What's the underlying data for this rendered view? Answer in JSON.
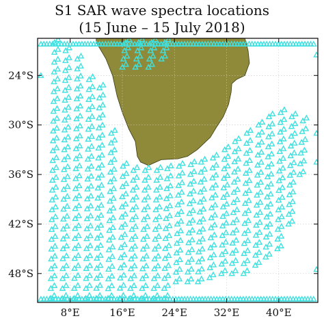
{
  "chart_data": {
    "type": "scatter",
    "title": "S1 SAR wave spectra locations",
    "subtitle": "(15 June – 15 July 2018)",
    "xlim": [
      3,
      46
    ],
    "ylim": [
      -51.5,
      -19.5
    ],
    "x_ticks": [
      {
        "value": 8,
        "label": "8°E"
      },
      {
        "value": 16,
        "label": "16°E"
      },
      {
        "value": 24,
        "label": "24°E"
      },
      {
        "value": 32,
        "label": "32°E"
      },
      {
        "value": 40,
        "label": "40°E"
      }
    ],
    "y_ticks": [
      {
        "value": -24,
        "label": "24°S"
      },
      {
        "value": -30,
        "label": "30°S"
      },
      {
        "value": -36,
        "label": "36°S"
      },
      {
        "value": -42,
        "label": "42°S"
      },
      {
        "value": -48,
        "label": "48°S"
      }
    ],
    "grid": true,
    "colors": {
      "marker": "#3fe0e0",
      "land": "#8f8a3a",
      "land_edge": "#3a3a12",
      "grid": "#c8c8c8",
      "frame": "#000000",
      "text": "#111111"
    },
    "marker_symbol": "triangle",
    "land_outline": [
      [
        12.0,
        -20.0
      ],
      [
        13.5,
        -22.0
      ],
      [
        14.5,
        -24.0
      ],
      [
        15.2,
        -26.5
      ],
      [
        16.0,
        -28.5
      ],
      [
        17.0,
        -30.5
      ],
      [
        18.0,
        -32.0
      ],
      [
        18.3,
        -33.8
      ],
      [
        18.8,
        -34.5
      ],
      [
        20.0,
        -34.9
      ],
      [
        22.0,
        -34.2
      ],
      [
        24.5,
        -34.1
      ],
      [
        26.0,
        -33.8
      ],
      [
        27.5,
        -33.0
      ],
      [
        29.5,
        -31.5
      ],
      [
        30.5,
        -30.2
      ],
      [
        31.5,
        -29.0
      ],
      [
        32.3,
        -27.5
      ],
      [
        32.7,
        -26.0
      ],
      [
        32.8,
        -25.0
      ],
      [
        33.5,
        -24.5
      ],
      [
        34.8,
        -24.0
      ],
      [
        35.5,
        -22.5
      ],
      [
        35.3,
        -21.0
      ],
      [
        34.8,
        -19.5
      ],
      [
        12.0,
        -19.5
      ]
    ],
    "swaths": [
      {
        "lon": [
          5.0,
          5.6
        ],
        "lat": [
          -51.0,
          -20.0
        ],
        "step": 1.2
      },
      {
        "lon": [
          6.8,
          7.3
        ],
        "lat": [
          -51.0,
          -21.0
        ],
        "step": 1.2
      },
      {
        "lon": [
          8.6,
          9.1
        ],
        "lat": [
          -51.0,
          -22.0
        ],
        "step": 1.2
      },
      {
        "lon": [
          10.4,
          10.9
        ],
        "lat": [
          -51.0,
          -24.5
        ],
        "step": 1.2
      },
      {
        "lon": [
          12.0,
          12.5
        ],
        "lat": [
          -51.0,
          -25.5
        ],
        "step": 1.2
      },
      {
        "lon": [
          13.8,
          14.3
        ],
        "lat": [
          -51.0,
          -31.0
        ],
        "step": 1.2
      },
      {
        "lon": [
          15.6,
          16.1
        ],
        "lat": [
          -51.0,
          -35.0
        ],
        "step": 1.2
      },
      {
        "lon": [
          17.2,
          17.7
        ],
        "lat": [
          -51.0,
          -35.5
        ],
        "step": 1.2
      },
      {
        "lon": [
          19.0,
          19.5
        ],
        "lat": [
          -51.0,
          -35.5
        ],
        "step": 1.2
      },
      {
        "lon": [
          20.8,
          21.3
        ],
        "lat": [
          -51.0,
          -35.5
        ],
        "step": 1.2
      },
      {
        "lon": [
          22.4,
          22.9
        ],
        "lat": [
          -51.0,
          -35.3
        ],
        "step": 1.2
      },
      {
        "lon": [
          24.2,
          24.7
        ],
        "lat": [
          -49.0,
          -35.0
        ],
        "step": 1.2
      },
      {
        "lon": [
          26.0,
          26.5
        ],
        "lat": [
          -49.0,
          -34.8
        ],
        "step": 1.2
      },
      {
        "lon": [
          27.6,
          28.1
        ],
        "lat": [
          -49.0,
          -34.5
        ],
        "step": 1.2
      },
      {
        "lon": [
          29.4,
          29.9
        ],
        "lat": [
          -48.5,
          -34.0
        ],
        "step": 1.2
      },
      {
        "lon": [
          31.2,
          31.7
        ],
        "lat": [
          -48.0,
          -33.0
        ],
        "step": 1.2
      },
      {
        "lon": [
          32.8,
          33.3
        ],
        "lat": [
          -48.0,
          -32.0
        ],
        "step": 1.2
      },
      {
        "lon": [
          34.6,
          35.1
        ],
        "lat": [
          -48.0,
          -31.0
        ],
        "step": 1.2
      },
      {
        "lon": [
          36.4,
          36.9
        ],
        "lat": [
          -47.0,
          -30.0
        ],
        "step": 1.2
      },
      {
        "lon": [
          38.0,
          38.5
        ],
        "lat": [
          -46.0,
          -29.0
        ],
        "step": 1.2
      },
      {
        "lon": [
          39.8,
          40.3
        ],
        "lat": [
          -45.0,
          -28.5
        ],
        "step": 1.2
      },
      {
        "lon": [
          41.5,
          42.0
        ],
        "lat": [
          -42.0,
          -29.0
        ],
        "step": 1.2
      },
      {
        "lon": [
          43.2,
          43.7
        ],
        "lat": [
          -36.0,
          -29.5
        ],
        "step": 1.2
      },
      {
        "lon": [
          16.0,
          16.5
        ],
        "lat": [
          -23.0,
          -20.0
        ],
        "step": 1.2
      },
      {
        "lon": [
          18.0,
          18.5
        ],
        "lat": [
          -23.0,
          -20.0
        ],
        "step": 1.2
      },
      {
        "lon": [
          20.0,
          20.5
        ],
        "lat": [
          -23.0,
          -20.0
        ],
        "step": 1.2
      },
      {
        "lon": [
          22.0,
          22.5
        ],
        "lat": [
          -22.0,
          -20.0
        ],
        "step": 1.2
      }
    ],
    "edge_rows": [
      {
        "lat": -20.2,
        "lon": [
          3.5,
          45.5
        ],
        "step": 0.45
      },
      {
        "lat": -51.1,
        "lon": [
          3.5,
          45.5
        ],
        "step": 0.45
      }
    ],
    "extra_points": [
      [
        3.5,
        -24.0
      ],
      [
        45.8,
        -21.5
      ],
      [
        45.8,
        -31.0
      ],
      [
        45.8,
        -34.5
      ],
      [
        45.8,
        -47.5
      ]
    ]
  }
}
